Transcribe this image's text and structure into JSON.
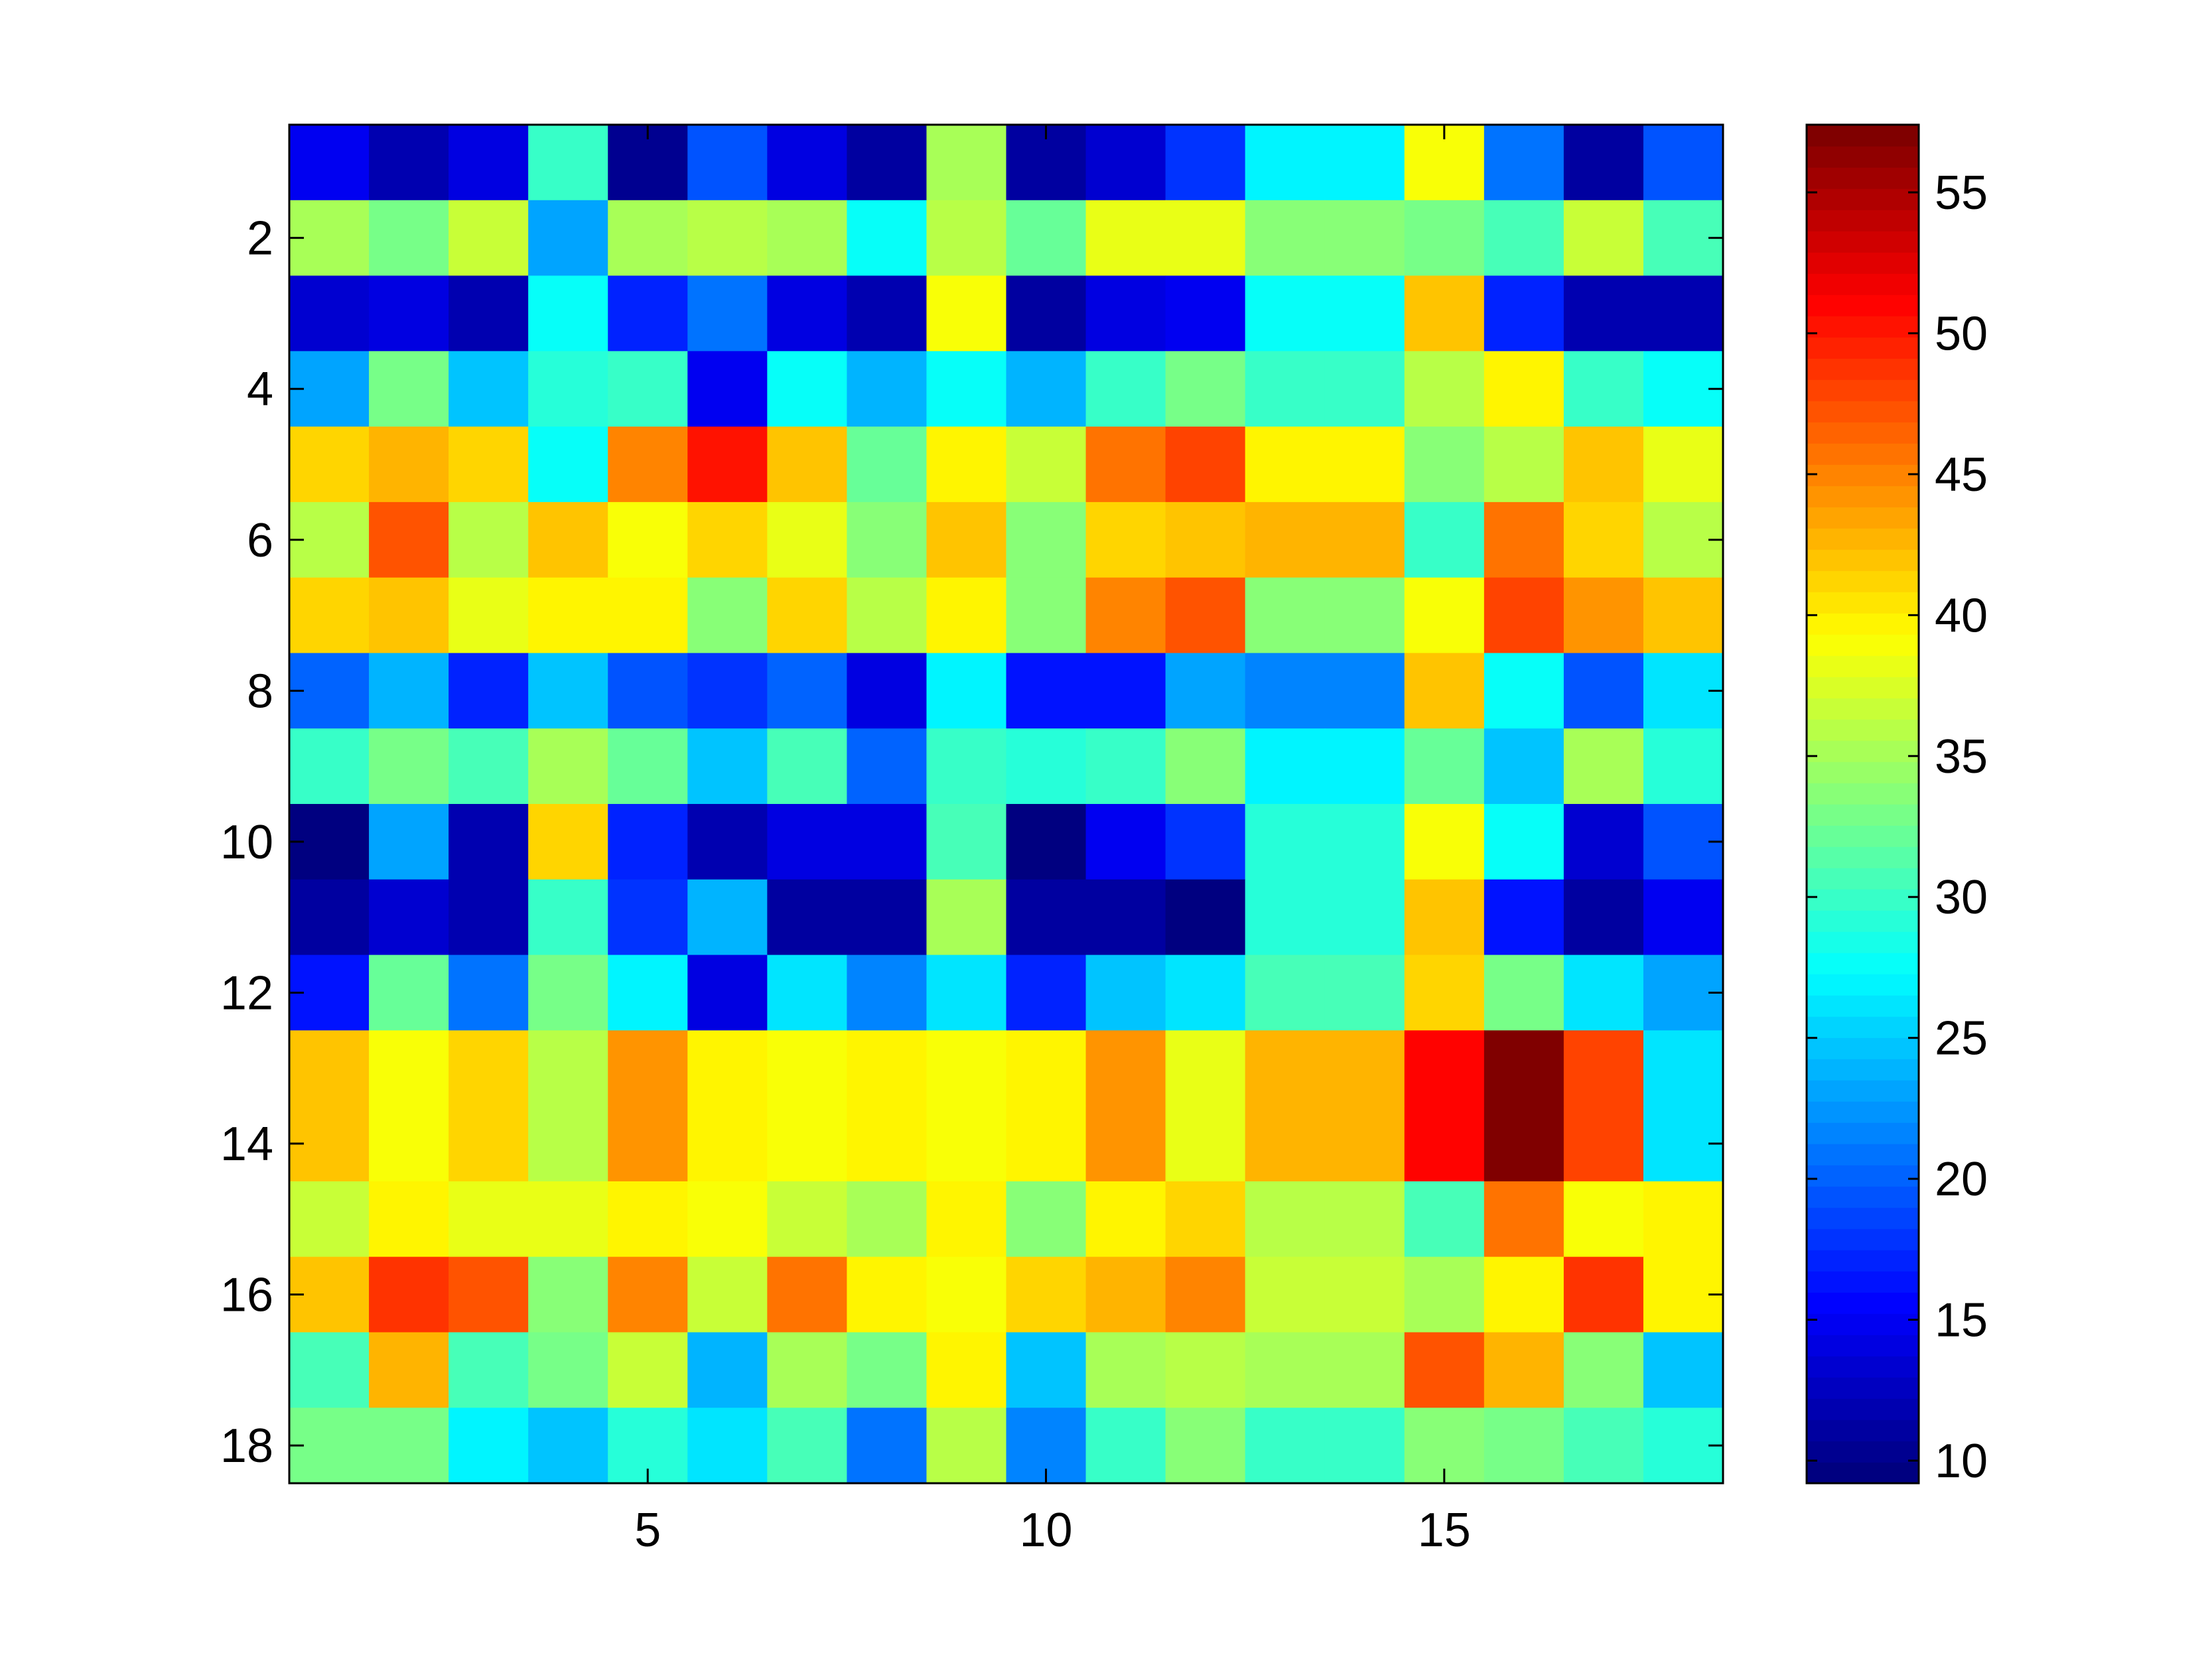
{
  "chart_data": {
    "type": "heatmap",
    "title": "",
    "xlabel": "",
    "ylabel": "",
    "colormap": "jet",
    "clim": [
      9.2,
      57.4
    ],
    "x": [
      1,
      2,
      3,
      4,
      5,
      6,
      7,
      8,
      9,
      10,
      11,
      12,
      13,
      14,
      15,
      16,
      17,
      18
    ],
    "y": [
      1,
      2,
      3,
      4,
      5,
      6,
      7,
      8,
      9,
      10,
      11,
      12,
      13,
      14,
      15,
      16,
      17,
      18
    ],
    "xlim": [
      0.5,
      18.5
    ],
    "ylim": [
      0.5,
      18.5
    ],
    "y_direction": "reversed",
    "xticks": [
      5,
      10,
      15
    ],
    "xtick_labels": [
      "5",
      "10",
      "15"
    ],
    "yticks": [
      2,
      4,
      6,
      8,
      10,
      12,
      14,
      16,
      18
    ],
    "ytick_labels": [
      "2",
      "4",
      "6",
      "8",
      "10",
      "12",
      "14",
      "16",
      "18"
    ],
    "colorbar_ticks": [
      10,
      15,
      20,
      25,
      30,
      35,
      40,
      45,
      50,
      55
    ],
    "colorbar_tick_labels": [
      "10",
      "15",
      "20",
      "25",
      "30",
      "35",
      "40",
      "45",
      "50",
      "55"
    ],
    "grid": false,
    "values": [
      [
        15,
        12,
        14,
        30,
        10,
        19,
        14,
        11,
        35,
        11,
        13,
        18,
        27,
        27,
        39,
        21,
        11,
        19
      ],
      [
        35,
        33,
        37,
        23,
        35,
        36,
        35,
        28,
        36,
        32,
        38,
        38,
        34,
        34,
        33,
        31,
        37,
        31
      ],
      [
        13,
        14,
        12,
        28,
        17,
        21,
        14,
        12,
        39,
        11,
        14,
        15,
        28,
        28,
        42,
        17,
        12,
        12
      ],
      [
        23,
        33,
        25,
        29,
        30,
        15,
        28,
        24,
        28,
        24,
        30,
        33,
        30,
        30,
        36,
        40,
        30,
        28
      ],
      [
        41,
        43,
        41,
        28,
        45,
        50,
        42,
        32,
        40,
        37,
        46,
        48,
        40,
        40,
        34,
        36,
        42,
        38
      ],
      [
        36,
        47,
        36,
        42,
        39,
        41,
        38,
        34,
        42,
        34,
        41,
        42,
        43,
        43,
        30,
        46,
        41,
        36
      ],
      [
        41,
        42,
        38,
        40,
        40,
        34,
        41,
        36,
        40,
        34,
        45,
        47,
        34,
        34,
        39,
        48,
        44,
        42
      ],
      [
        20,
        24,
        17,
        25,
        19,
        18,
        20,
        14,
        27,
        16,
        16,
        23,
        22,
        22,
        42,
        28,
        19,
        26
      ],
      [
        30,
        33,
        31,
        35,
        32,
        25,
        31,
        20,
        30,
        29,
        30,
        34,
        27,
        27,
        32,
        25,
        35,
        29
      ],
      [
        9.5,
        23,
        12,
        41,
        17,
        12,
        14,
        14,
        31,
        9.5,
        15,
        18,
        29,
        29,
        39,
        28,
        13,
        19
      ],
      [
        11,
        13,
        12,
        30,
        18,
        24,
        11,
        11,
        35,
        11,
        11,
        9.3,
        29,
        29,
        42,
        16,
        11,
        15
      ],
      [
        16,
        32,
        21,
        33,
        27,
        14,
        26,
        22,
        26,
        17,
        25,
        26,
        31,
        31,
        41,
        33,
        26,
        23
      ],
      [
        42,
        39,
        41,
        36,
        44,
        40,
        39,
        40,
        39,
        39.5,
        44,
        38,
        43,
        43,
        51,
        57,
        48,
        26
      ],
      [
        42,
        39,
        41,
        36,
        44,
        40,
        39,
        40,
        39,
        39.5,
        44,
        38,
        43,
        43,
        51,
        57,
        48,
        26
      ],
      [
        37,
        40,
        38.5,
        38.5,
        40,
        39,
        37,
        35,
        40,
        34,
        40,
        41,
        36,
        36,
        31,
        46,
        39,
        40
      ],
      [
        42,
        49,
        47,
        34,
        45,
        37,
        46,
        40,
        39,
        41,
        43,
        45,
        37,
        37,
        35,
        39.5,
        49,
        40
      ],
      [
        31,
        43,
        31,
        33,
        37,
        24,
        35,
        33,
        40,
        25,
        35,
        36,
        35,
        35,
        47,
        43,
        34,
        25
      ],
      [
        33,
        33,
        27,
        25,
        29,
        26.5,
        31,
        21,
        36,
        22,
        30,
        34,
        30,
        30,
        34,
        33,
        31,
        29
      ]
    ]
  }
}
